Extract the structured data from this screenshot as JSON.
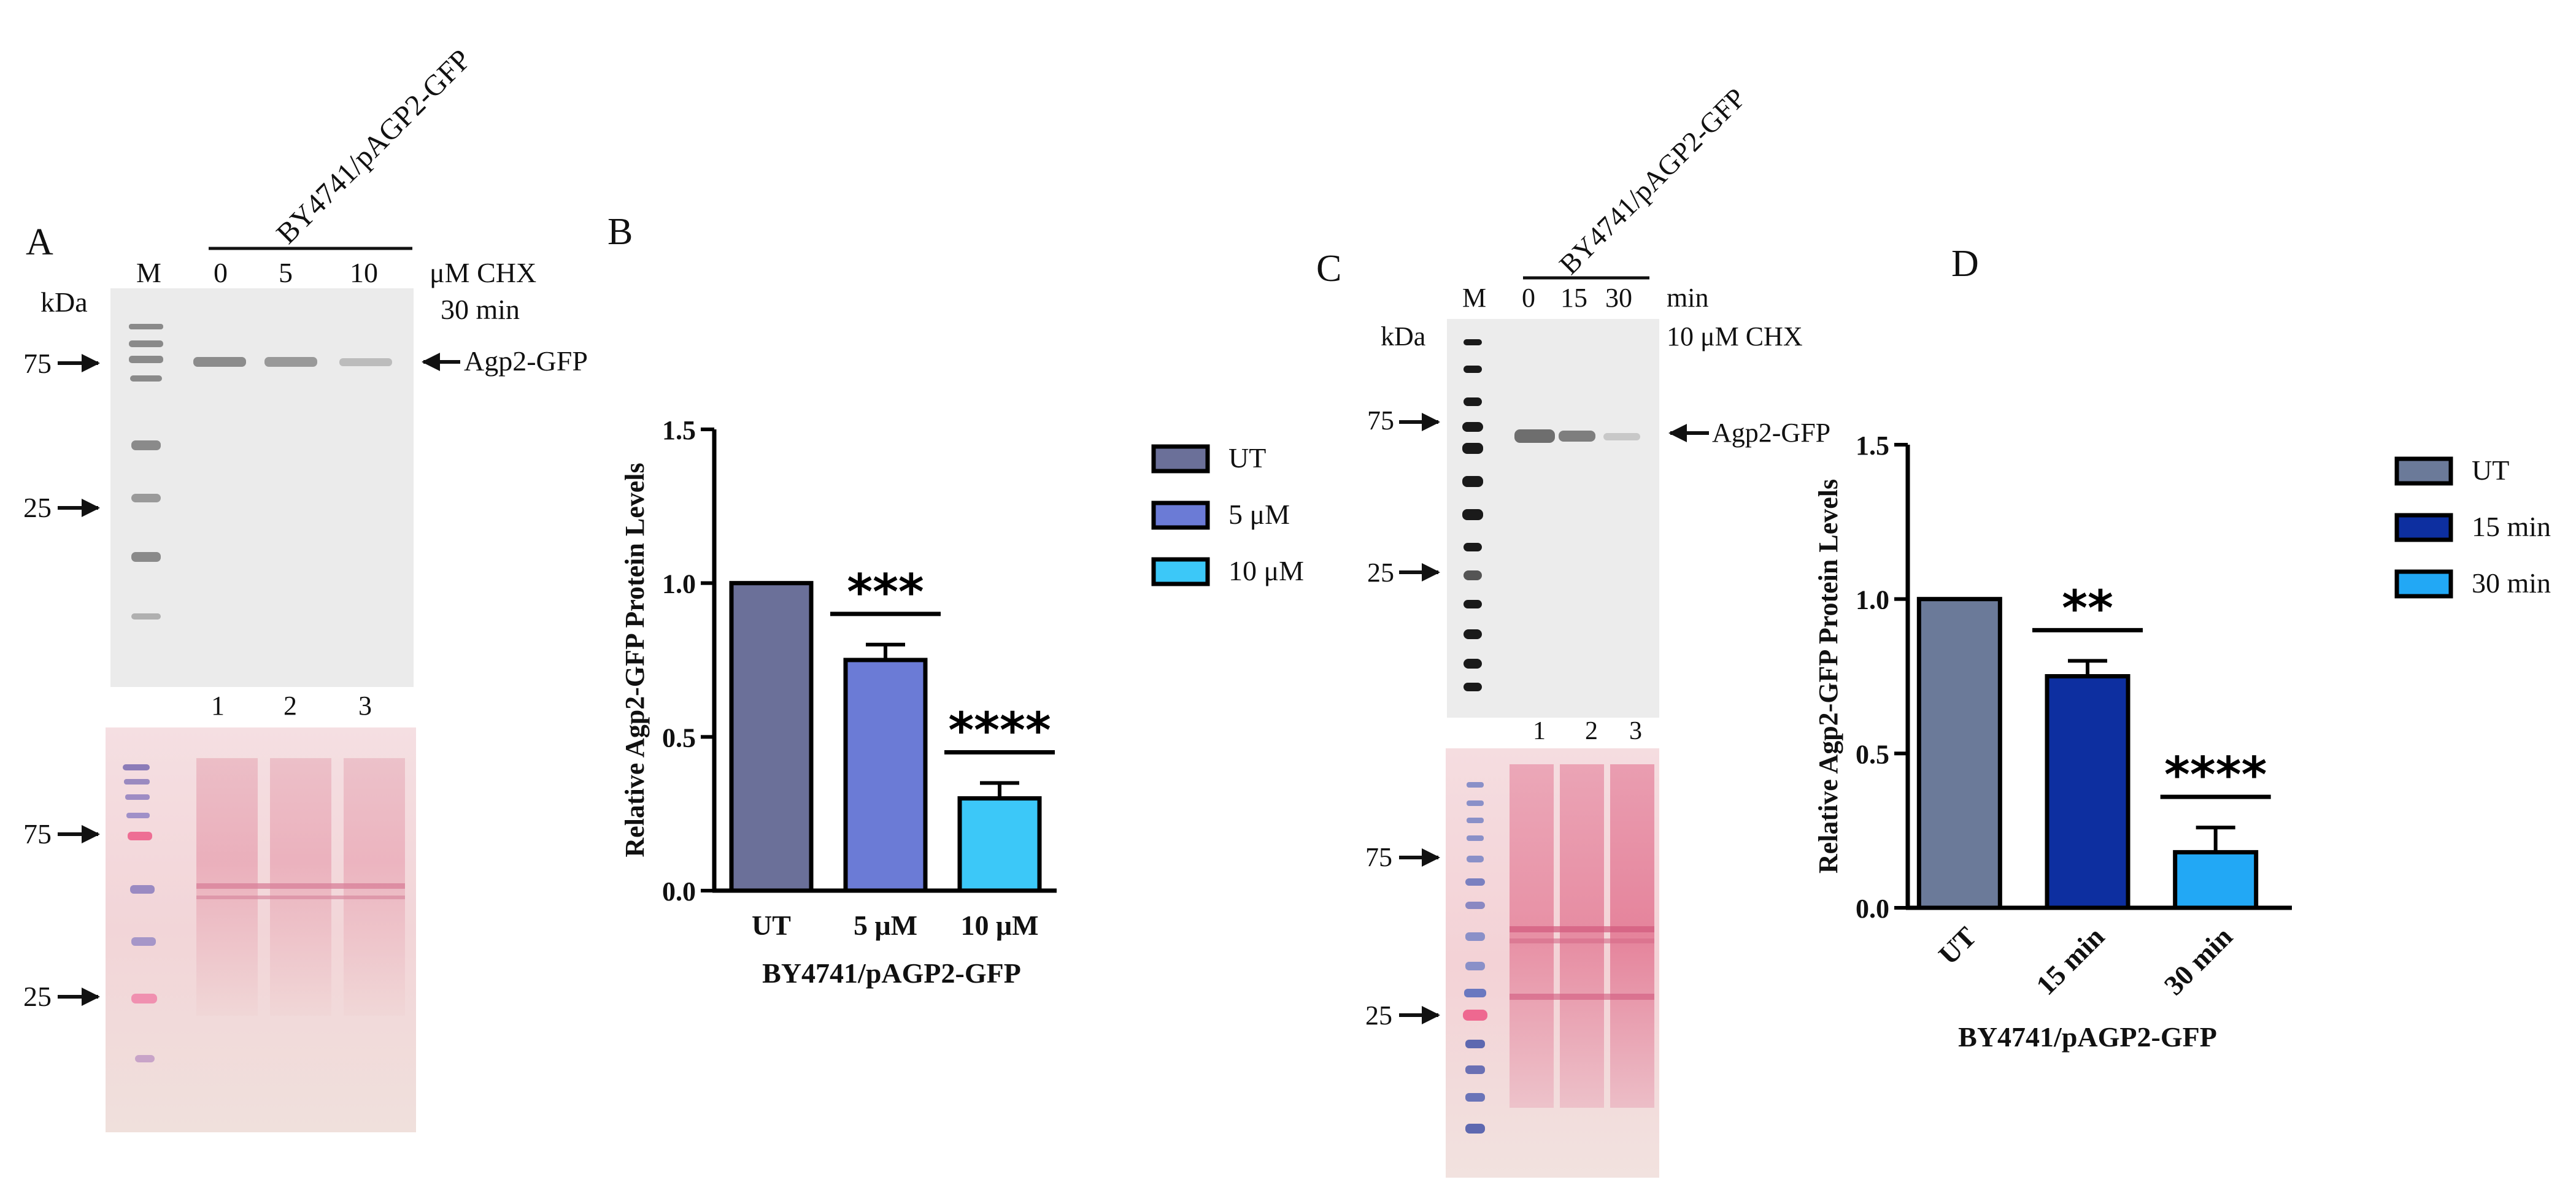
{
  "panel_letters": {
    "a": "A",
    "b": "B",
    "c": "C",
    "d": "D"
  },
  "panel_a": {
    "strain": "BY4741/pAGP2-GFP",
    "marker_lane": "M",
    "kda": "kDa",
    "conc_labels": [
      "0",
      "5",
      "10"
    ],
    "unit_label": "μM CHX",
    "time_label": "30 min",
    "band_label": "Agp2-GFP",
    "mw_top": [
      "75",
      "25"
    ],
    "lane_numbers": [
      "1",
      "2",
      "3"
    ],
    "mw_bottom": [
      "75",
      "25"
    ],
    "band_intensity": [
      1.0,
      0.75,
      0.3
    ]
  },
  "panel_c": {
    "strain": "BY4741/pAGP2-GFP",
    "marker_lane": "M",
    "kda": "kDa",
    "time_labels": [
      "0",
      "15",
      "30"
    ],
    "unit_label": "min",
    "cond_label": "10 μM CHX",
    "band_label": "Agp2-GFP",
    "mw_top": [
      "75",
      "25"
    ],
    "lane_numbers": [
      "1",
      "2",
      "3"
    ],
    "mw_bottom": [
      "75",
      "25"
    ],
    "band_intensity": [
      1.0,
      0.75,
      0.18
    ]
  },
  "chart_data": [
    {
      "type": "bar",
      "panel": "B",
      "title": "",
      "categories": [
        "UT",
        "5 μM",
        "10 μM"
      ],
      "values": [
        1.0,
        0.75,
        0.3
      ],
      "errors": [
        0,
        0.05,
        0.05
      ],
      "colors": [
        "#6b7099",
        "#6b7bd6",
        "#3cc8f8"
      ],
      "significance": [
        "",
        "***",
        "****"
      ],
      "ylabel": "Relative Agp2-GFP Protein Levels",
      "xlabel": "BY4741/pAGP2-GFP",
      "ylim": [
        0,
        1.5
      ],
      "yticks": [
        "0.0",
        "0.5",
        "1.0",
        "1.5"
      ],
      "legend": [
        "UT",
        "5 μM",
        "10 μM"
      ],
      "legend_position": "right",
      "grid": false
    },
    {
      "type": "bar",
      "panel": "D",
      "title": "",
      "categories": [
        "UT",
        "15 min",
        "30 min"
      ],
      "values": [
        1.0,
        0.75,
        0.18
      ],
      "errors": [
        0,
        0.05,
        0.08
      ],
      "colors": [
        "#6b7a99",
        "#0d2fa0",
        "#22a8f5"
      ],
      "significance": [
        "",
        "**",
        "****"
      ],
      "ylabel": "Relative Agp2-GFP Protein Levels",
      "xlabel": "BY4741/pAGP2-GFP",
      "ylim": [
        0,
        1.5
      ],
      "yticks": [
        "0.0",
        "0.5",
        "1.0",
        "1.5"
      ],
      "legend": [
        "UT",
        "15 min",
        "30 min"
      ],
      "legend_position": "right",
      "grid": false
    }
  ]
}
